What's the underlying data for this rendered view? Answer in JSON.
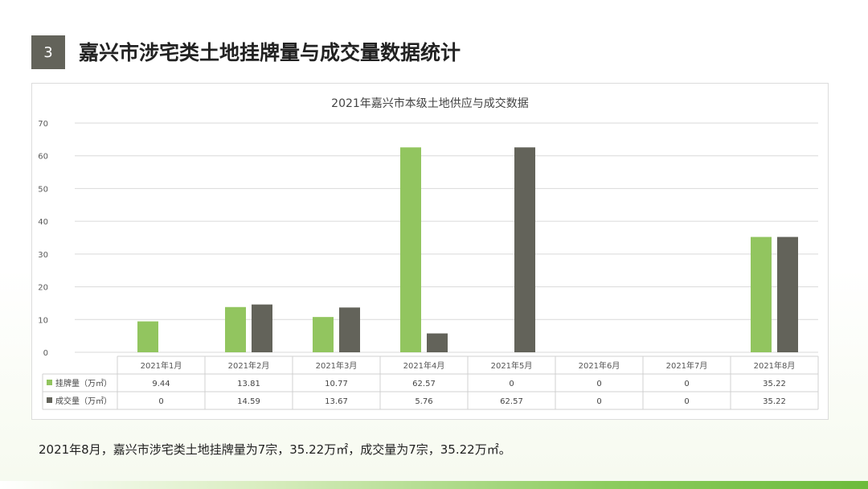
{
  "header": {
    "section_number": "3",
    "title": "嘉兴市涉宅类土地挂牌量与成交量数据统计"
  },
  "chart_data": {
    "type": "bar",
    "title": "2021年嘉兴市本级土地供应与成交数据",
    "categories": [
      "2021年1月",
      "2021年2月",
      "2021年3月",
      "2021年4月",
      "2021年5月",
      "2021年6月",
      "2021年7月",
      "2021年8月"
    ],
    "series": [
      {
        "name": "挂牌量（万㎡）",
        "color": "#92c55f",
        "values": [
          9.44,
          13.81,
          10.77,
          62.57,
          0,
          0,
          0,
          35.22
        ]
      },
      {
        "name": "成交量（万㎡）",
        "color": "#63635a",
        "values": [
          0,
          14.59,
          13.67,
          5.76,
          62.57,
          0,
          0,
          35.22
        ]
      }
    ],
    "ylim": [
      0,
      70
    ],
    "yticks": [
      0,
      10,
      20,
      30,
      40,
      50,
      60,
      70
    ],
    "grid": true,
    "legend": "data-table"
  },
  "footnote": "2021年8月，嘉兴市涉宅类土地挂牌量为7宗，35.22万㎡，成交量为7宗，35.22万㎡。"
}
